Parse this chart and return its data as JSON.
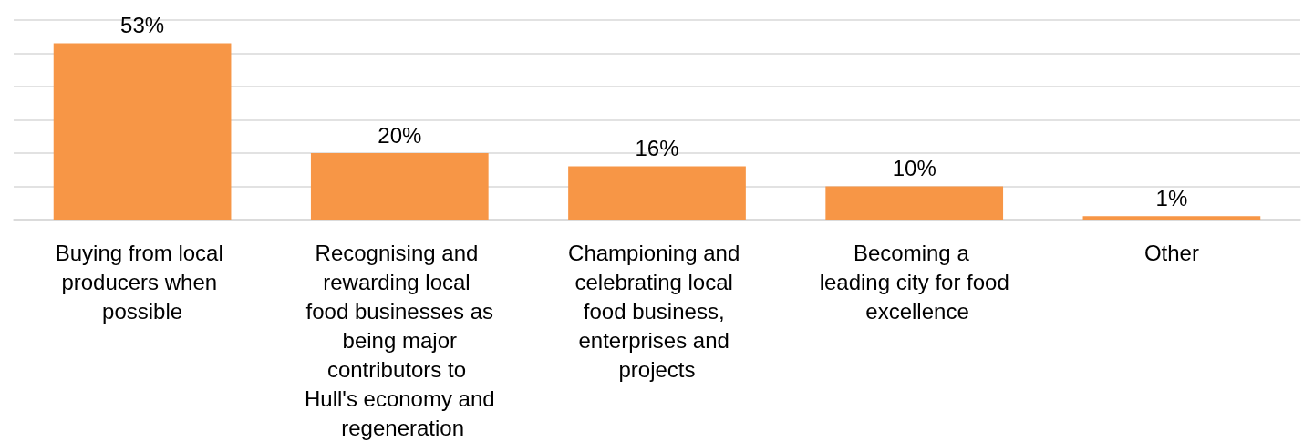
{
  "chart_data": {
    "type": "bar",
    "categories": [
      "Buying from local producers when possible",
      "Recognising and rewarding local food businesses as being major contributors to Hull's economy and regeneration",
      "Championing and celebrating local food business, enterprises and projects",
      "Becoming a leading city for food excellence",
      "Other"
    ],
    "values": [
      53,
      20,
      16,
      10,
      1
    ],
    "value_labels": [
      "53%",
      "20%",
      "16%",
      "10%",
      "1%"
    ],
    "color": "#f79646",
    "ylim": [
      0,
      60
    ],
    "yticks": [
      {
        "value": 0,
        "label": null
      },
      {
        "value": 10,
        "label": null
      },
      {
        "value": 20,
        "label": null
      },
      {
        "value": 30,
        "label": null
      },
      {
        "value": 40,
        "label": null
      },
      {
        "value": 50,
        "label": null
      },
      {
        "value": 60,
        "label": null
      }
    ],
    "grid": true,
    "tick_labels": "x"
  }
}
